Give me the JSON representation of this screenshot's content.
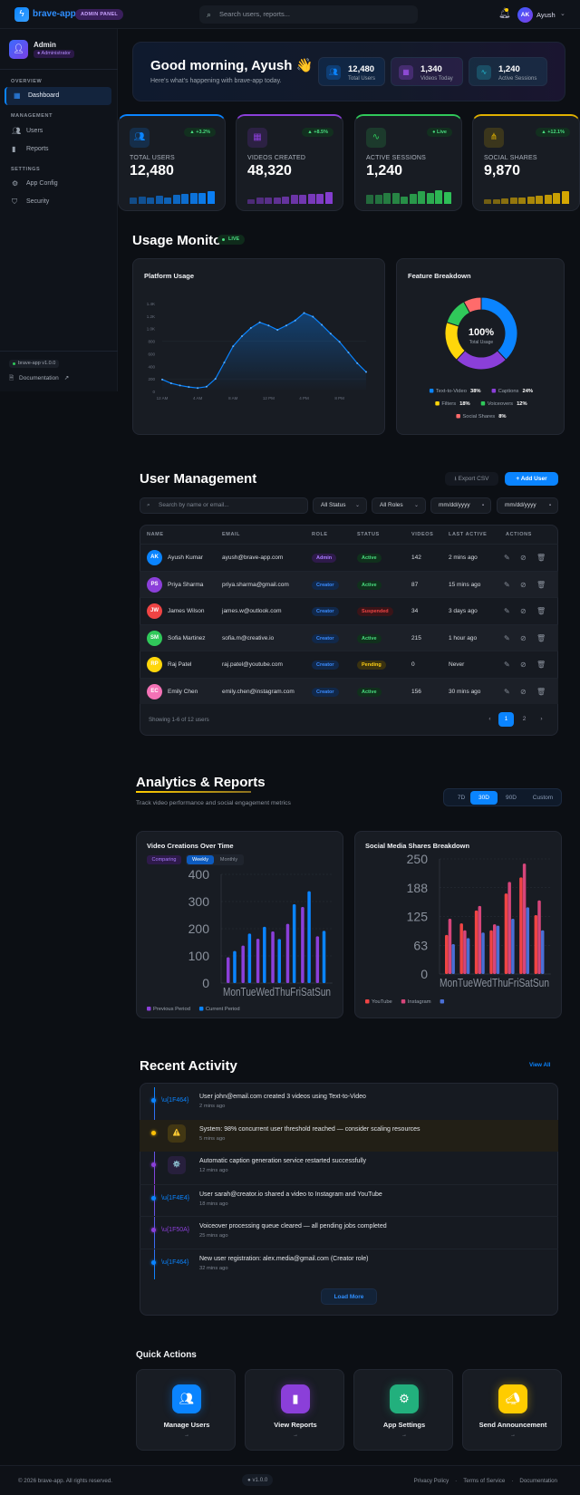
{
  "header": {
    "brand": "brave-app",
    "badge": "ADMIN PANEL",
    "search_placeholder": "Search users, reports...",
    "user_initials": "AK",
    "user_name": "Ayush"
  },
  "sidebar": {
    "profile": {
      "name": "Admin",
      "role": "● Administrator"
    },
    "sections": [
      {
        "label": "OVERVIEW",
        "items": [
          {
            "label": "Dashboard",
            "icon": "grid-icon",
            "active": true
          }
        ]
      },
      {
        "label": "MANAGEMENT",
        "items": [
          {
            "label": "Users",
            "icon": "users-icon"
          },
          {
            "label": "Reports",
            "icon": "bar-chart-icon"
          }
        ]
      },
      {
        "label": "SETTINGS",
        "items": [
          {
            "label": "App Config",
            "icon": "gear-icon"
          },
          {
            "label": "Security",
            "icon": "shield-icon"
          }
        ]
      }
    ],
    "version": "brave-app v1.0.0",
    "docs": "Documentation"
  },
  "welcome": {
    "greeting": "Good morning, Ayush 👋",
    "subtitle": "Here's what's happening with brave-app today.",
    "stats": [
      {
        "value": "12,480",
        "label": "Total Users",
        "icon": "users-icon",
        "color": "#0a84ff"
      },
      {
        "value": "1,340",
        "label": "Videos Today",
        "icon": "film-icon",
        "color": "#a855f7"
      },
      {
        "value": "1,240",
        "label": "Active Sessions",
        "icon": "activity-icon",
        "color": "#22b8cf"
      }
    ]
  },
  "stat_cards": [
    {
      "label": "TOTAL USERS",
      "value": "12,480",
      "badge": "▲ +3.2%",
      "icon": "users-icon",
      "color": "#0a84ff",
      "spark": [
        35,
        45,
        35,
        50,
        40,
        55,
        60,
        62,
        65,
        75
      ]
    },
    {
      "label": "VIDEOS CREATED",
      "value": "48,320",
      "badge": "▲ +8.5%",
      "icon": "film-icon",
      "color": "#8b3fd9",
      "spark": [
        25,
        35,
        40,
        38,
        45,
        52,
        52,
        60,
        58,
        72
      ]
    },
    {
      "label": "ACTIVE SESSIONS",
      "value": "1,240",
      "badge": "● Live",
      "icon": "activity-icon",
      "color": "#30c85a",
      "spark": [
        55,
        55,
        65,
        62,
        45,
        60,
        75,
        62,
        78,
        70
      ]
    },
    {
      "label": "SOCIAL SHARES",
      "value": "9,870",
      "badge": "▲ +12.1%",
      "icon": "share-icon",
      "color": "#e0b000",
      "spark": [
        25,
        28,
        30,
        38,
        38,
        45,
        50,
        52,
        62,
        75
      ]
    }
  ],
  "usage_monitor": {
    "title": "Usage Monitor",
    "live": "LIVE",
    "platform_title": "Platform Usage",
    "feature_title": "Feature Breakdown"
  },
  "chart_data": [
    {
      "type": "area",
      "title": "Platform Usage",
      "x_tick_labels": [
        "12 AM",
        "4 AM",
        "8 AM",
        "12 PM",
        "4 PM",
        "8 PM"
      ],
      "y_tick_labels": [
        "0",
        "200",
        "400",
        "600",
        "800",
        "1.0K",
        "1.2K",
        "1.4K"
      ],
      "ylim": [
        0,
        1400
      ],
      "x_hours": [
        0,
        1,
        2,
        3,
        4,
        5,
        6,
        7,
        8,
        9,
        10,
        11,
        12,
        13,
        14,
        15,
        16,
        17,
        18,
        19,
        20,
        21,
        22,
        23
      ],
      "values": [
        190,
        130,
        95,
        70,
        55,
        75,
        200,
        460,
        720,
        880,
        1010,
        1100,
        1050,
        980,
        1050,
        1130,
        1250,
        1190,
        1060,
        920,
        790,
        620,
        450,
        310
      ],
      "color": "#0a84ff"
    },
    {
      "type": "pie",
      "title": "Feature Breakdown",
      "center_value": "100%",
      "center_label": "Total Usage",
      "slices": [
        {
          "name": "Text-to-Video",
          "value": 38,
          "label": "38%",
          "color": "#0a84ff"
        },
        {
          "name": "Captions",
          "value": 24,
          "label": "24%",
          "color": "#8b3fd9"
        },
        {
          "name": "Filters",
          "value": 18,
          "label": "18%",
          "color": "#ffd60a"
        },
        {
          "name": "Voiceovers",
          "value": 12,
          "label": "12%",
          "color": "#30c85a"
        },
        {
          "name": "Social Shares",
          "value": 8,
          "label": "8%",
          "color": "#ff6b6b"
        }
      ]
    },
    {
      "type": "bar",
      "title": "Video Creations Over Time",
      "categories": [
        "Mon",
        "Tue",
        "Wed",
        "Thu",
        "Fri",
        "Sat",
        "Sun"
      ],
      "category_labels_text": "MonTueWedThuFriSatSun",
      "ylim": [
        0,
        400
      ],
      "y_tick_labels": [
        "0",
        "100",
        "200",
        "300",
        "400"
      ],
      "series": [
        {
          "name": "Previous Period",
          "color": "#8b3fd9",
          "values": [
            95,
            138,
            163,
            190,
            218,
            280,
            172
          ]
        },
        {
          "name": "Current Period",
          "color": "#0a84ff",
          "values": [
            118,
            182,
            207,
            162,
            290,
            338,
            192
          ]
        }
      ],
      "legend": "bottom-left"
    },
    {
      "type": "bar",
      "title": "Social Media Shares Breakdown",
      "categories": [
        "Mon",
        "Tue",
        "Wed",
        "Thu",
        "Fri",
        "Sat",
        "Sun"
      ],
      "category_labels_text": "MonTueWedThuFriSatSun",
      "ylim": [
        0,
        250
      ],
      "y_tick_labels": [
        "0",
        "63",
        "125",
        "188",
        "250"
      ],
      "series": [
        {
          "name": "YouTube",
          "color": "#ef4444",
          "values": [
            85,
            110,
            138,
            95,
            175,
            210,
            128
          ]
        },
        {
          "name": "Instagram",
          "color": "#d6457a",
          "values": [
            120,
            95,
            148,
            108,
            200,
            240,
            160
          ]
        },
        {
          "name": "",
          "color": "#4a6fd6",
          "values": [
            65,
            78,
            90,
            105,
            120,
            145,
            95
          ]
        }
      ],
      "legend": "bottom-left"
    }
  ],
  "users": {
    "title": "User Management",
    "export_label": "Export CSV",
    "add_label": "Add User",
    "search_placeholder": "Search by name or email...",
    "status_filter": "All Status",
    "role_filter": "All Roles",
    "date_from": "mm/dd/yyyy",
    "date_to": "mm/dd/yyyy",
    "columns": [
      "NAME",
      "EMAIL",
      "ROLE",
      "STATUS",
      "VIDEOS",
      "LAST ACTIVE",
      "ACTIONS"
    ],
    "rows": [
      {
        "initials": "AK",
        "color": "#0a84ff",
        "name": "Ayush Kumar",
        "email": "ayush@brave-app.com",
        "role": "Admin",
        "status": "Active",
        "videos": "142",
        "last": "2 mins ago"
      },
      {
        "initials": "PS",
        "color": "#8b3fd9",
        "name": "Priya Sharma",
        "email": "priya.sharma@gmail.com",
        "role": "Creator",
        "status": "Active",
        "videos": "87",
        "last": "15 mins ago"
      },
      {
        "initials": "JW",
        "color": "#ef4444",
        "name": "James Wilson",
        "email": "james.w@outlook.com",
        "role": "Creator",
        "status": "Suspended",
        "videos": "34",
        "last": "3 days ago"
      },
      {
        "initials": "SM",
        "color": "#30c85a",
        "name": "Sofia Martinez",
        "email": "sofia.m@creative.io",
        "role": "Creator",
        "status": "Active",
        "videos": "215",
        "last": "1 hour ago"
      },
      {
        "initials": "RP",
        "color": "#ffd60a",
        "name": "Raj Patel",
        "email": "raj.patel@youtube.com",
        "role": "Creator",
        "status": "Pending",
        "videos": "0",
        "last": "Never"
      },
      {
        "initials": "EC",
        "color": "#f472b6",
        "name": "Emily Chen",
        "email": "emily.chen@instagram.com",
        "role": "Creator",
        "status": "Active",
        "videos": "156",
        "last": "30 mins ago"
      }
    ],
    "showing": "Showing 1-6 of 12 users",
    "pages": [
      "‹",
      "1",
      "2",
      "›"
    ],
    "current_page": "1"
  },
  "analytics": {
    "title": "Analytics & Reports",
    "subtitle": "Track video performance and social engagement metrics",
    "ranges": [
      "7D",
      "30D",
      "90D",
      "Custom"
    ],
    "active_range": "30D",
    "toggles": [
      "Comparing",
      "Weekly",
      "Monthly"
    ],
    "active_toggle": "Weekly"
  },
  "activity": {
    "title": "Recent Activity",
    "view_all": "View All",
    "items": [
      {
        "icon": "\\u{1F464}",
        "text": "User john@email.com created 3 videos using Text-to-Video",
        "time": "2 mins ago",
        "color": "#0a84ff"
      },
      {
        "icon": "⚠️",
        "text": "System: 98% concurrent user threshold reached — consider scaling resources",
        "time": "5 mins ago",
        "color": "#ffc107",
        "warning": true
      },
      {
        "icon": "⚙️",
        "text": "Automatic caption generation service restarted successfully",
        "time": "12 mins ago",
        "color": "#8b3fd9"
      },
      {
        "icon": "\\u{1F4E4}",
        "text": "User sarah@creator.io shared a video to Instagram and YouTube",
        "time": "18 mins ago",
        "color": "#0a84ff"
      },
      {
        "icon": "\\u{1F50A}",
        "text": "Voiceover processing queue cleared — all pending jobs completed",
        "time": "25 mins ago",
        "color": "#8b3fd9"
      },
      {
        "icon": "\\u{1F464}",
        "text": "New user registration: alex.media@gmail.com (Creator role)",
        "time": "32 mins ago",
        "color": "#0a84ff"
      }
    ],
    "load_more": "Load More"
  },
  "quick_actions": {
    "title": "Quick Actions",
    "items": [
      {
        "label": "Manage Users",
        "arrow": "→",
        "icon": "users-icon",
        "color": "#0a84ff"
      },
      {
        "label": "View Reports",
        "arrow": "→",
        "icon": "bar-chart-icon",
        "color": "#8b3fd9"
      },
      {
        "label": "App Settings",
        "arrow": "→",
        "icon": "gear-icon",
        "color": "#22b07d"
      },
      {
        "label": "Send Announcement",
        "arrow": "→",
        "icon": "megaphone-icon",
        "color": "#ffcc00"
      }
    ]
  },
  "footer": {
    "copyright": "© 2026 brave-app. All rights reserved.",
    "version": "● v1.0.0",
    "links": [
      "Privacy Policy",
      "Terms of Service",
      "Documentation"
    ],
    "separator": "·"
  }
}
